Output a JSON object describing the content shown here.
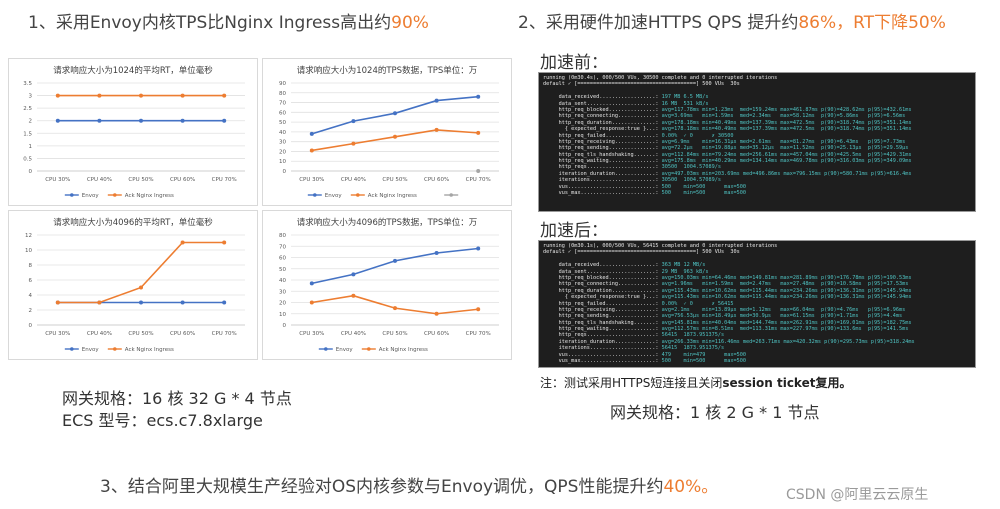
{
  "headings": {
    "h1_prefix": "1、采用Envoy内核TPS比Nginx Ingress高出约",
    "h1_value": "90%",
    "h2_prefix": "2、采用硬件加速HTTPS QPS 提升约",
    "h2_value1": "86%",
    "h2_mid": "，RT下降",
    "h2_value2": "50%",
    "h3_prefix": "3、结合阿里大规模生产经验对OS内核参数与Envoy调优，QPS性能提升约",
    "h3_value": "40%。"
  },
  "colors": {
    "envoy": "#4472c4",
    "nginx": "#ed7d31",
    "third": "#a5a5a5",
    "grid": "#e0e0e0",
    "text": "#595959"
  },
  "chart_data": [
    {
      "type": "line",
      "title": "请求响应大小为1024的平均RT，单位毫秒",
      "categories": [
        "CPU 30%",
        "CPU 40%",
        "CPU 50%",
        "CPU 60%",
        "CPU 70%"
      ],
      "ylim": [
        0,
        3.5
      ],
      "yticks": [
        "0",
        "0.5",
        "1",
        "1.5",
        "2",
        "2.5",
        "3",
        "3.5"
      ],
      "grid": true,
      "legend": "bottom",
      "series": [
        {
          "name": "Envoy",
          "values": [
            2,
            2,
            2,
            2,
            2
          ]
        },
        {
          "name": "Ack Nginx Ingress",
          "values": [
            3,
            3,
            3,
            3,
            3
          ]
        }
      ]
    },
    {
      "type": "line",
      "title": "请求响应大小为1024的TPS数据，TPS单位：万",
      "categories": [
        "CPU 30%",
        "CPU 40%",
        "CPU 50%",
        "CPU 60%",
        "CPU 70%"
      ],
      "ylim": [
        0,
        90
      ],
      "yticks": [
        "0",
        "10",
        "20",
        "30",
        "40",
        "50",
        "60",
        "70",
        "80",
        "90"
      ],
      "grid": true,
      "legend": "bottom",
      "series": [
        {
          "name": "Envoy",
          "values": [
            38,
            51,
            59,
            72,
            76
          ]
        },
        {
          "name": "Ack Nginx Ingress",
          "values": [
            21,
            28,
            35,
            42,
            39
          ]
        },
        {
          "name": "",
          "values": [
            null,
            null,
            null,
            null,
            0
          ]
        }
      ]
    },
    {
      "type": "line",
      "title": "请求响应大小为4096的平均RT，单位毫秒",
      "categories": [
        "CPU 30%",
        "CPU 40%",
        "CPU 50%",
        "CPU 60%",
        "CPU 70%"
      ],
      "ylim": [
        0,
        12
      ],
      "yticks": [
        "0",
        "2",
        "4",
        "6",
        "8",
        "10",
        "12"
      ],
      "grid": true,
      "legend": "bottom",
      "series": [
        {
          "name": "Envoy",
          "values": [
            3,
            3,
            3,
            3,
            3
          ]
        },
        {
          "name": "Ack Nginx Ingress",
          "values": [
            3,
            3,
            5,
            11,
            11
          ]
        }
      ]
    },
    {
      "type": "line",
      "title": "请求响应大小为4096的TPS数据，TPS单位：万",
      "categories": [
        "CPU 30%",
        "CPU 40%",
        "CPU 50%",
        "CPU 60%",
        "CPU 70%"
      ],
      "ylim": [
        0,
        80
      ],
      "yticks": [
        "0",
        "10",
        "20",
        "30",
        "40",
        "50",
        "60",
        "70",
        "80"
      ],
      "grid": true,
      "legend": "bottom",
      "series": [
        {
          "name": "Envoy",
          "values": [
            37,
            45,
            57,
            64,
            68
          ]
        },
        {
          "name": "Ack Nginx Ingress",
          "values": [
            20,
            26,
            15,
            10,
            14
          ]
        }
      ]
    }
  ],
  "left_spec": {
    "line1": "网关规格：16 核 32 G * 4 节点",
    "line2": "ECS 型号：ecs.c7.8xlarge"
  },
  "terminals": {
    "before_label": "加速前：",
    "after_label": "加速后：",
    "before": {
      "header1": "running (0m30.4s), 000/500 VUs, 30500 complete and 0 interrupted iterations",
      "header2": "default ✓ [======================================] 500 VUs  30s",
      "rows": [
        {
          "metric": "     data_received..................:",
          "value": " 197 MB 6.5 MB/s"
        },
        {
          "metric": "     data_sent......................:",
          "value": " 16 MB  531 kB/s"
        },
        {
          "metric": "     http_req_blocked...............:",
          "value": " avg=117.78ms min=1.23ms  med=159.24ms max=461.87ms p(90)=428.62ms p(95)=432.61ms"
        },
        {
          "metric": "     http_req_connecting............:",
          "value": " avg=3.69ms   min=1.59ms  med=2.34ms   max=58.12ms  p(90)=5.86ms   p(95)=6.56ms"
        },
        {
          "metric": "     http_req_duration..............:",
          "value": " avg=178.18ms min=40.49ms med=137.39ms max=472.5ms  p(90)=318.74ms p(95)=351.14ms"
        },
        {
          "metric": "       { expected_response:true }...:",
          "value": " avg=178.18ms min=40.49ms med=137.39ms max=472.5ms  p(90)=318.74ms p(95)=351.14ms"
        },
        {
          "metric": "     http_req_failed................:",
          "value": " 0.00%  ✓ 0      ✗ 30500"
        },
        {
          "metric": "     http_req_receiving.............:",
          "value": " avg=6.9ms    min=16.31µs med=2.61ms   max=81.27ms  p(90)=6.43ms   p(95)=7.73ms"
        },
        {
          "metric": "     http_req_sending...............:",
          "value": " avg=72.2µs   min=19.88µs med=35.12µs  max=11.52ms  p(90)=25.13µs  p(95)=29.59µs"
        },
        {
          "metric": "     http_req_tls_handshaking.......:",
          "value": " avg=112.84ms min=79.24ms med=256.61ms max=457.04ms p(90)=425.5ms  p(95)=429.31ms"
        },
        {
          "metric": "     http_req_waiting...............:",
          "value": " avg=175.8ms  min=40.29ms med=134.14ms max=469.78ms p(90)=316.03ms p(95)=349.09ms"
        },
        {
          "metric": "     http_reqs......................:",
          "value": " 30500  1004.57089/s"
        },
        {
          "metric": "     iteration_duration.............:",
          "value": " avg=497.03ms min=203.69ms med=496.86ms max=796.15ms p(90)=580.71ms p(95)=616.4ms"
        },
        {
          "metric": "     iterations.....................:",
          "value": " 30500  1004.57089/s"
        },
        {
          "metric": "     vus............................:",
          "value": " 500    min=500      max=500"
        },
        {
          "metric": "     vus_max........................:",
          "value": " 500    min=500      max=500"
        }
      ]
    },
    "after": {
      "header1": "running (0m30.1s), 000/500 VUs, 56415 complete and 0 interrupted iterations",
      "header2": "default ✓ [======================================] 500 VUs  30s",
      "rows": [
        {
          "metric": "     data_received..................:",
          "value": " 363 MB 12 MB/s"
        },
        {
          "metric": "     data_sent......................:",
          "value": " 29 MB  963 kB/s"
        },
        {
          "metric": "     http_req_blocked...............:",
          "value": " avg=150.03ms min=64.46ms med=149.81ms max=281.89ms p(90)=176.78ms p(95)=190.53ms"
        },
        {
          "metric": "     http_req_connecting............:",
          "value": " avg=1.96ms   min=1.59ms  med=2.47ms   max=27.48ms  p(90)=10.58ms  p(95)=17.53ms"
        },
        {
          "metric": "     http_req_duration..............:",
          "value": " avg=115.43ms min=10.62ms med=115.44ms max=234.26ms p(90)=136.31ms p(95)=145.94ms"
        },
        {
          "metric": "       { expected_response:true }...:",
          "value": " avg=115.43ms min=10.62ms med=115.44ms max=234.26ms p(90)=136.31ms p(95)=145.94ms"
        },
        {
          "metric": "     http_req_failed................:",
          "value": " 0.00%  ✓ 0      ✗ 56415"
        },
        {
          "metric": "     http_req_receiving.............:",
          "value": " avg=2.1ms    min=13.89µs med=1.12ms   max=66.04ms  p(90)=4.76ms   p(95)=6.96ms"
        },
        {
          "metric": "     http_req_sending...............:",
          "value": " avg=756.53µs min=18.49µs med=30.9µs   max=61.15ms  p(90)=1.71ms   p(95)=4.4ms"
        },
        {
          "metric": "     http_req_tls_handshaking.......:",
          "value": " avg=145.81ms min=40.04ms med=144.74ms max=262.91ms p(90)=169.01ms p(95)=182.75ms"
        },
        {
          "metric": "     http_req_waiting...............:",
          "value": " avg=112.57ms min=8.51ms  med=113.31ms max=227.97ms p(90)=133.6ms  p(95)=141.5ms"
        },
        {
          "metric": "     http_reqs......................:",
          "value": " 56415  1873.951375/s"
        },
        {
          "metric": "     iteration_duration.............:",
          "value": " avg=266.33ms min=116.46ms med=263.71ms max=420.32ms p(90)=295.73ms p(95)=318.24ms"
        },
        {
          "metric": "     iterations.....................:",
          "value": " 56415  1873.951375/s"
        },
        {
          "metric": "     vus............................:",
          "value": " 479    min=479      max=500"
        },
        {
          "metric": "     vus_max........................:",
          "value": " 500    min=500      max=500"
        }
      ]
    }
  },
  "note": {
    "prefix": "注：测试采用HTTPS短连接且关闭",
    "bold": "session ticket复用。"
  },
  "right_spec": "网关规格：1 核 2 G * 1 节点",
  "watermark": "CSDN @阿里云云原生"
}
